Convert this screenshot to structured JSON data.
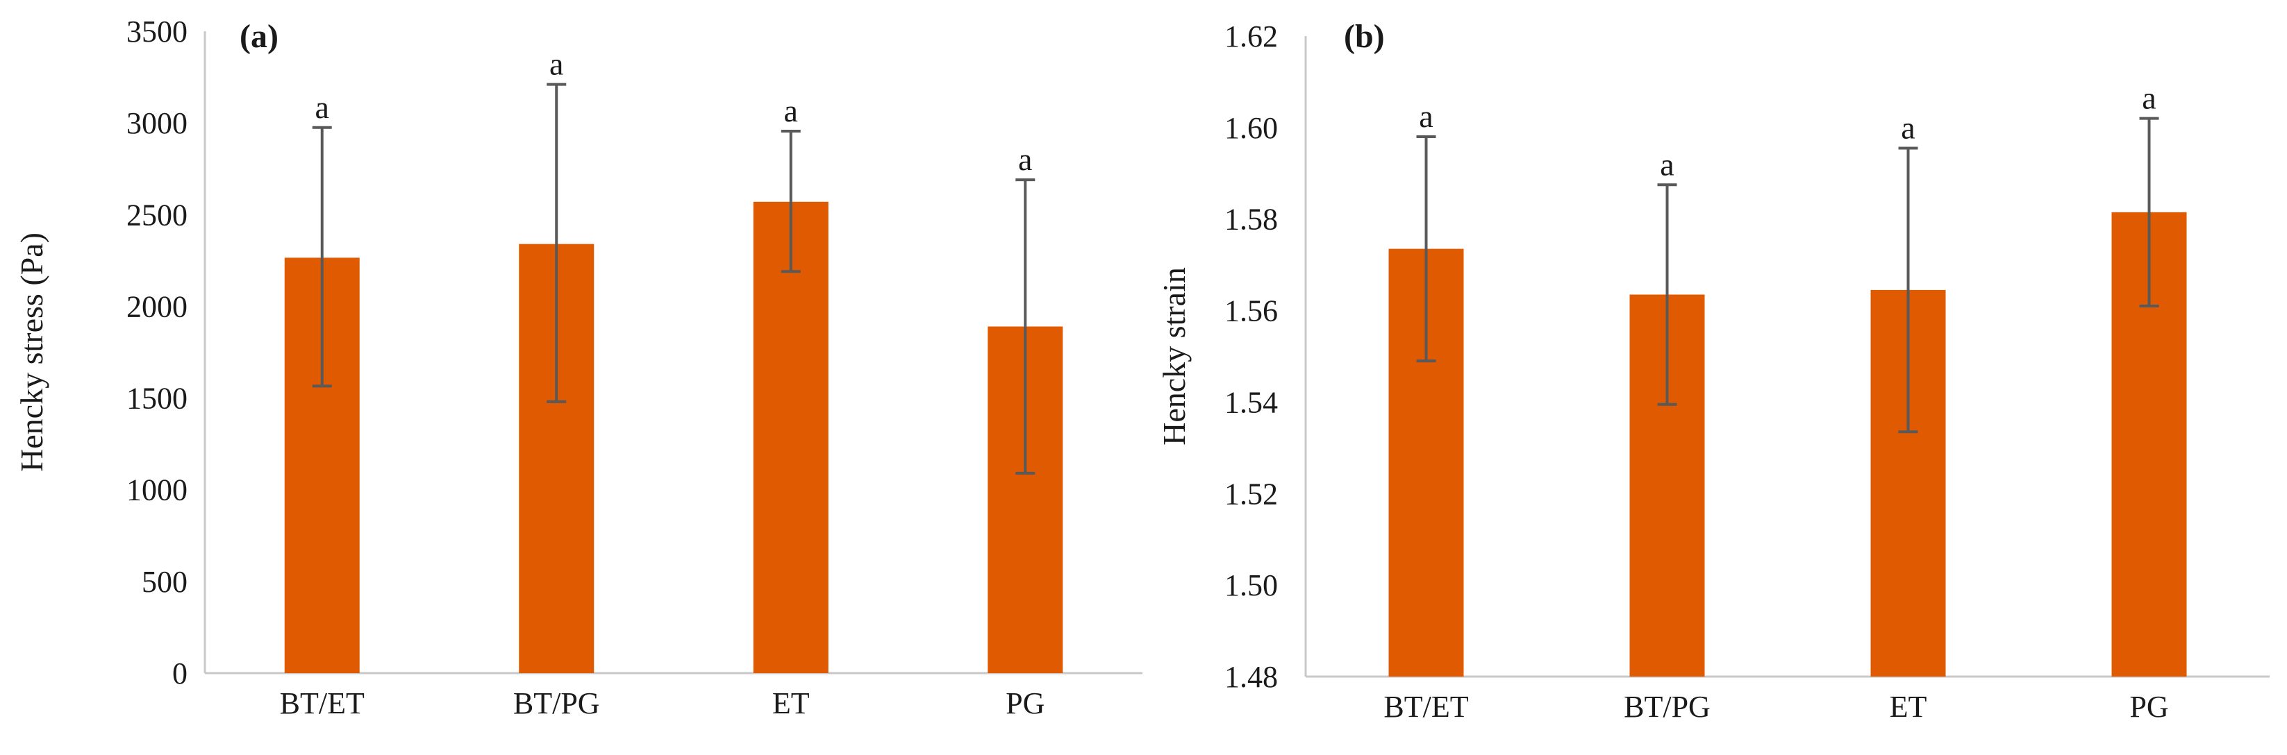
{
  "colors": {
    "bar": "#DF5A00",
    "axis": "#c8c8c8",
    "errorbar": "#595959",
    "text": "#1a1a1a"
  },
  "chart_data": [
    {
      "type": "bar",
      "panel_label": "(a)",
      "title": "",
      "xlabel": "",
      "ylabel": "Hencky stress (Pa)",
      "categories": [
        "BT/ET",
        "BT/PG",
        "ET",
        "PG"
      ],
      "values": [
        2265,
        2340,
        2570,
        1890
      ],
      "error_plus": [
        710,
        870,
        385,
        800
      ],
      "error_minus": [
        700,
        860,
        380,
        800
      ],
      "significance": [
        "a",
        "a",
        "a",
        "a"
      ],
      "ylim": [
        0,
        3500
      ],
      "yticks": [
        0,
        500,
        1000,
        1500,
        2000,
        2500,
        3000,
        3500
      ],
      "ytick_labels": [
        "0",
        "500",
        "1000",
        "1500",
        "2000",
        "2500",
        "3000",
        "3500"
      ],
      "grid": false,
      "legend": "none"
    },
    {
      "type": "bar",
      "panel_label": "(b)",
      "title": "",
      "xlabel": "",
      "ylabel": "Hencky strain",
      "categories": [
        "BT/ET",
        "BT/PG",
        "ET",
        "PG"
      ],
      "values": [
        1.5735,
        1.5635,
        1.5645,
        1.5815
      ],
      "error_plus": [
        0.0245,
        0.024,
        0.031,
        0.0205
      ],
      "error_minus": [
        0.0245,
        0.024,
        0.031,
        0.0205
      ],
      "significance": [
        "a",
        "a",
        "a",
        "a"
      ],
      "ylim": [
        1.48,
        1.62
      ],
      "yticks": [
        1.48,
        1.5,
        1.52,
        1.54,
        1.56,
        1.58,
        1.6,
        1.62
      ],
      "ytick_labels": [
        "1.48",
        "1.50",
        "1.52",
        "1.54",
        "1.56",
        "1.58",
        "1.60",
        "1.62"
      ],
      "grid": false,
      "legend": "none"
    }
  ]
}
